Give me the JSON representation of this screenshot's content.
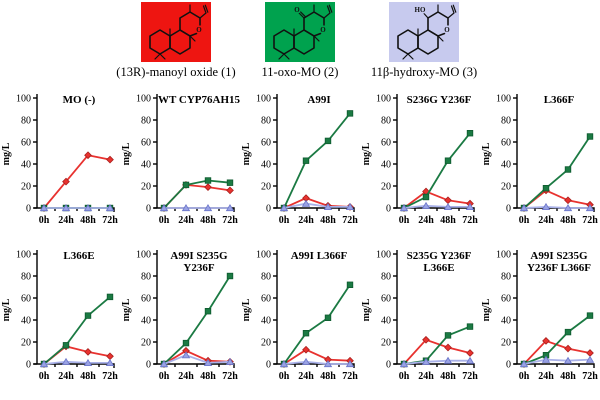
{
  "header": {
    "compounds": [
      {
        "label": "(13R)-manoyl oxide (1)",
        "color": "#ee1511",
        "icon": "manoyl-oxide-structure"
      },
      {
        "label": "11-oxo-MO (2)",
        "color": "#00a24e",
        "icon": "oxo-mo-structure"
      },
      {
        "label": "11β-hydroxy-MO (3)",
        "color": "#c7caee",
        "icon": "hydroxy-mo-structure"
      }
    ]
  },
  "chart_data": {
    "type": "line",
    "x_categories": [
      "0h",
      "24h",
      "48h",
      "72h"
    ],
    "ylabel": "mg/L",
    "ylim": [
      0,
      100
    ],
    "yticks": [
      0,
      20,
      40,
      60,
      80,
      100
    ],
    "grid": false,
    "legend": "color-coded to compound squares above, no in-chart legend",
    "series_defs": [
      {
        "name": "(13R)-manoyl oxide (1)",
        "marker": "diamond",
        "line_color": "#e8322f",
        "fill": "#e8322f",
        "edge": "#a81f1c"
      },
      {
        "name": "11-oxo-MO (2)",
        "marker": "square",
        "line_color": "#1b7a43",
        "fill": "#1b7a43",
        "edge": "#0e5a2f"
      },
      {
        "name": "11β-hydroxy-MO (3)",
        "marker": "triangle",
        "line_color": "#a9b1e8",
        "fill": "#99a2e4",
        "edge": "#6a74c9"
      }
    ],
    "charts": [
      {
        "title": [
          "MO (-)"
        ],
        "series": [
          [
            0,
            24,
            48,
            44
          ],
          [
            0,
            0,
            0,
            0
          ],
          [
            0,
            0,
            0,
            0
          ]
        ]
      },
      {
        "title": [
          "WT CYP76AH15"
        ],
        "series": [
          [
            0,
            21,
            19,
            16
          ],
          [
            0,
            21,
            25,
            23
          ],
          [
            0,
            0,
            0,
            0
          ]
        ]
      },
      {
        "title": [
          "A99I"
        ],
        "series": [
          [
            0,
            9,
            2,
            1
          ],
          [
            0,
            43,
            61,
            86
          ],
          [
            0,
            4,
            1,
            1
          ]
        ]
      },
      {
        "title": [
          "S236G Y236F"
        ],
        "series": [
          [
            0,
            15,
            7,
            4
          ],
          [
            0,
            10,
            43,
            68
          ],
          [
            0,
            2,
            1,
            1
          ]
        ]
      },
      {
        "title": [
          "L366F"
        ],
        "series": [
          [
            0,
            16,
            7,
            3
          ],
          [
            0,
            18,
            35,
            65
          ],
          [
            0,
            1,
            0,
            0
          ]
        ]
      },
      {
        "title": [
          "L366E"
        ],
        "series": [
          [
            0,
            16,
            11,
            7
          ],
          [
            0,
            17,
            44,
            61
          ],
          [
            0,
            2,
            1,
            1
          ]
        ]
      },
      {
        "title": [
          "A99I S235G",
          "Y236F"
        ],
        "series": [
          [
            0,
            12,
            3,
            2
          ],
          [
            0,
            19,
            48,
            80
          ],
          [
            0,
            8,
            1,
            2
          ]
        ]
      },
      {
        "title": [
          "A99I L366F"
        ],
        "series": [
          [
            0,
            13,
            4,
            3
          ],
          [
            0,
            28,
            42,
            72
          ],
          [
            0,
            2,
            0,
            0
          ]
        ]
      },
      {
        "title": [
          "S235G Y236F",
          "L366E"
        ],
        "series": [
          [
            0,
            22,
            15,
            10
          ],
          [
            0,
            3,
            26,
            34
          ],
          [
            0,
            2,
            3,
            3
          ]
        ]
      },
      {
        "title": [
          "A99I S235G",
          "Y236F L366F"
        ],
        "series": [
          [
            0,
            21,
            14,
            10
          ],
          [
            0,
            8,
            29,
            44
          ],
          [
            0,
            4,
            3,
            4
          ]
        ]
      }
    ]
  }
}
